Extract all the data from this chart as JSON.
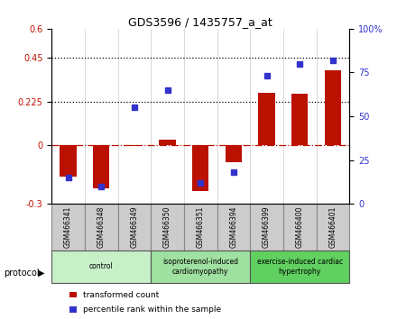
{
  "title": "GDS3596 / 1435757_a_at",
  "samples": [
    "GSM466341",
    "GSM466348",
    "GSM466349",
    "GSM466350",
    "GSM466351",
    "GSM466394",
    "GSM466399",
    "GSM466400",
    "GSM466401"
  ],
  "red_values": [
    -0.16,
    -0.22,
    -0.005,
    0.03,
    -0.235,
    -0.085,
    0.27,
    0.265,
    0.385
  ],
  "blue_right": [
    15,
    10,
    55,
    65,
    12,
    18,
    73,
    80,
    82
  ],
  "groups": [
    {
      "label": "control",
      "indices": [
        0,
        1,
        2
      ],
      "color": "#c8f0c8"
    },
    {
      "label": "isoproterenol-induced\ncardiomyopathy",
      "indices": [
        3,
        4,
        5
      ],
      "color": "#a0e0a0"
    },
    {
      "label": "exercise-induced cardiac\nhypertrophy",
      "indices": [
        6,
        7,
        8
      ],
      "color": "#60d060"
    }
  ],
  "ylim_left": [
    -0.3,
    0.6
  ],
  "ylim_right": [
    0,
    100
  ],
  "yticks_left": [
    -0.3,
    0.0,
    0.225,
    0.45,
    0.6
  ],
  "yticks_right": [
    0,
    25,
    50,
    75,
    100
  ],
  "hlines": [
    0.45,
    0.225
  ],
  "zero_line": 0.0,
  "red_color": "#bb1100",
  "blue_color": "#3333cc",
  "bar_width": 0.5,
  "protocol_label": "protocol",
  "legend_red": "transformed count",
  "legend_blue": "percentile rank within the sample",
  "bg_color": "#ffffff",
  "plot_bg": "#ffffff",
  "sample_box_color": "#cccccc",
  "sample_box_edge": "#888888"
}
